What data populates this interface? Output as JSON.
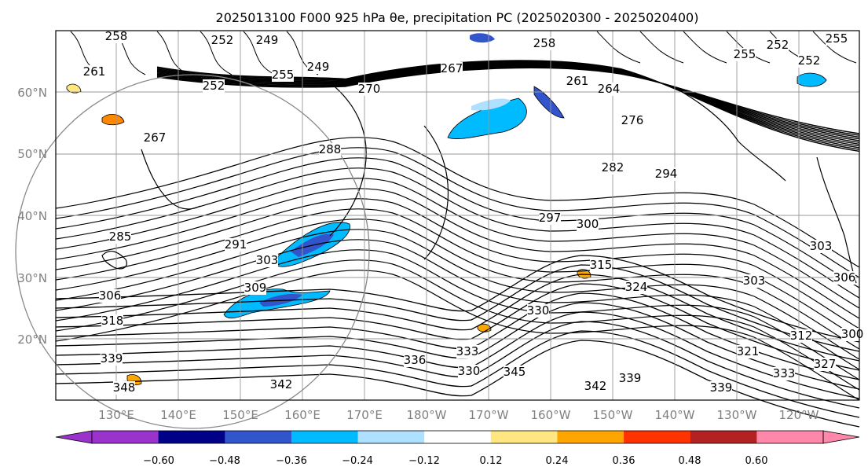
{
  "title": "2025013100 F000 925 hPa θe, precipitation PC (2025020300 - 2025020400)",
  "map": {
    "lat_labels": [
      "60°N",
      "50°N",
      "40°N",
      "30°N",
      "20°N"
    ],
    "lon_labels": [
      "130°E",
      "140°E",
      "150°E",
      "160°E",
      "170°E",
      "180°W",
      "170°W",
      "160°W",
      "150°W",
      "140°W",
      "130°W",
      "120°W"
    ],
    "contour_labels": [
      "258",
      "252",
      "249",
      "261",
      "252",
      "255",
      "249",
      "267",
      "258",
      "270",
      "264",
      "261",
      "276",
      "282",
      "294",
      "267",
      "288",
      "285",
      "291",
      "297",
      "300",
      "303",
      "306",
      "309",
      "315",
      "318",
      "324",
      "330",
      "339",
      "336",
      "345",
      "333",
      "330",
      "342",
      "348",
      "339",
      "342",
      "339",
      "333",
      "327",
      "321",
      "312",
      "303",
      "303",
      "306",
      "300",
      "255",
      "252",
      "252",
      "255"
    ]
  },
  "colorbar": {
    "tick_labels": [
      "−0.60",
      "−0.48",
      "−0.36",
      "−0.24",
      "−0.12",
      "0.12",
      "0.24",
      "0.36",
      "0.48",
      "0.60"
    ],
    "colors": [
      "#9933cc",
      "#000088",
      "#3355cc",
      "#00bbff",
      "#b0e0ff",
      "#ffffff",
      "#ffe680",
      "#ffa500",
      "#ff3300",
      "#b22222",
      "#ff88aa"
    ],
    "extend": "both"
  }
}
